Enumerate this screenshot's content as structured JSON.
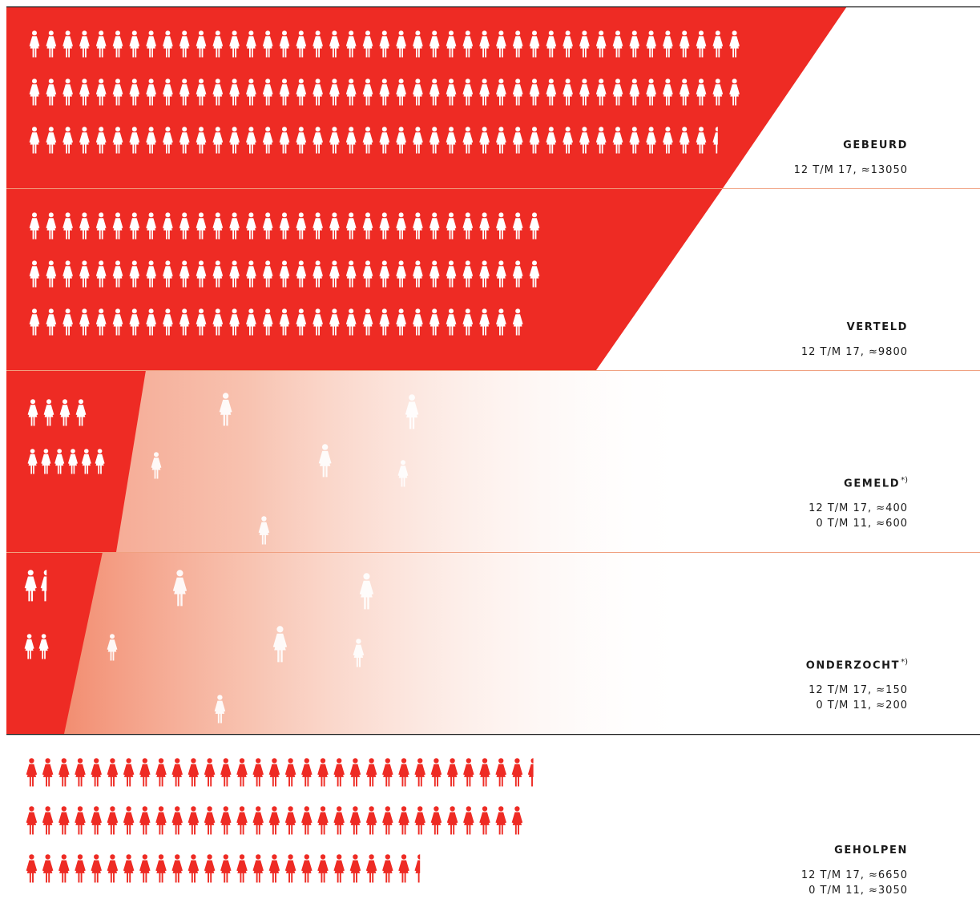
{
  "colors": {
    "red": "#ee2b24",
    "white": "#ffffff",
    "separator": "#f0a080",
    "border": "#222222"
  },
  "icon": "woman-figure-icon",
  "chart_data": {
    "type": "pictogram",
    "title": "",
    "series": [
      {
        "key": "gebeurd",
        "label": "GEBEURD",
        "footnote": "",
        "lines": [
          "12 T/M 17, ≈13050"
        ],
        "rows": [
          43,
          43,
          41.5
        ],
        "style": "filled"
      },
      {
        "key": "verteld",
        "label": "VERTELD",
        "footnote": "",
        "lines": [
          "12 T/M 17, ≈9800"
        ],
        "rows": [
          31,
          31,
          30
        ],
        "style": "filled"
      },
      {
        "key": "gemeld",
        "label": "GEMELD",
        "footnote": "*)",
        "lines": [
          "12 T/M 17, ≈400",
          "0 T/M 11, ≈600"
        ],
        "rows": [
          4,
          6
        ],
        "style": "fading"
      },
      {
        "key": "onderzocht",
        "label": "ONDERZOCHT",
        "footnote": "*)",
        "lines": [
          "12 T/M 17, ≈150",
          "0 T/M 11, ≈200"
        ],
        "rows": [
          1.5,
          2
        ],
        "style": "fading"
      },
      {
        "key": "geholpen",
        "label": "GEHOLPEN",
        "footnote": "",
        "lines": [
          "12 T/M 17, ≈6650",
          "0 T/M 11, ≈3050"
        ],
        "rows": [
          31.5,
          31,
          24.5
        ],
        "style": "plain"
      }
    ]
  }
}
